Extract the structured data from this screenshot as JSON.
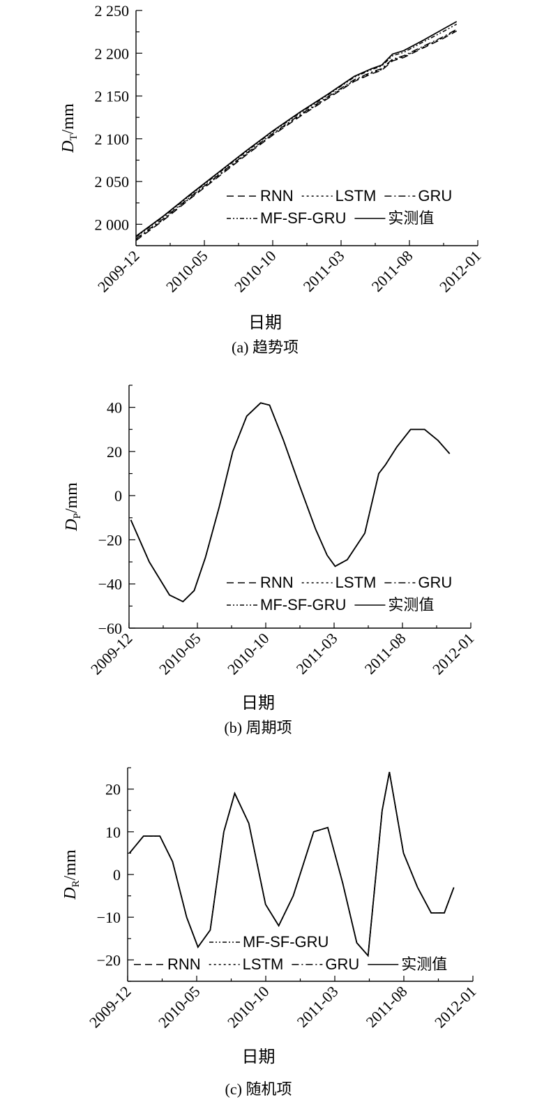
{
  "styles": {
    "RNN": "10,6",
    "LSTM": "3,4",
    "GRU": "10,4,2,4",
    "MF-SF-GRU": "6,3,2,3,2,3",
    "实测值": ""
  },
  "legend_order": [
    [
      "RNN",
      "LSTM",
      "GRU"
    ],
    [
      "MF-SF-GRU",
      "实测值"
    ]
  ],
  "legend_order_c": [
    [
      "MF-SF-GRU"
    ],
    [
      "RNN",
      "LSTM",
      "GRU",
      "实测值"
    ]
  ],
  "chart_data": [
    {
      "type": "line",
      "caption": "(a) 趋势项",
      "xlabel": "日期",
      "ylabel_main": "D",
      "ylabel_sub": "T",
      "ylabel_unit": "/mm",
      "x_ticks": [
        "2009-12",
        "2010-05",
        "2010-10",
        "2011-03",
        "2011-08",
        "2012-01"
      ],
      "y_ticks": [
        2000,
        2050,
        2100,
        2150,
        2200,
        2250
      ],
      "y_tick_labels": [
        "2 000",
        "2 050",
        "2 100",
        "2 150",
        "2 200",
        "2 250"
      ],
      "ylim": [
        1975,
        2250
      ],
      "x_range": [
        "2009-12-01",
        "2012-01-01"
      ],
      "series": [
        {
          "name": "实测值",
          "x": [
            "2009-12-01",
            "2010-02-01",
            "2010-04-01",
            "2010-06-01",
            "2010-08-01",
            "2010-10-01",
            "2010-12-01",
            "2011-02-01",
            "2011-04-01",
            "2011-05-10",
            "2011-06-01",
            "2011-06-25",
            "2011-07-20",
            "2011-09-01",
            "2011-10-15",
            "2011-11-15"
          ],
          "values": [
            1986,
            2010,
            2035,
            2060,
            2085,
            2109,
            2131,
            2152,
            2173,
            2182,
            2186,
            2199,
            2203,
            2215,
            2228,
            2237
          ]
        },
        {
          "name": "RNN",
          "x": [
            "2009-12-01",
            "2010-02-01",
            "2010-04-01",
            "2010-06-01",
            "2010-08-01",
            "2010-10-01",
            "2010-12-01",
            "2011-02-01",
            "2011-04-01",
            "2011-05-10",
            "2011-06-01",
            "2011-06-25",
            "2011-07-20",
            "2011-09-01",
            "2011-10-15",
            "2011-11-15"
          ],
          "values": [
            1981,
            2005,
            2030,
            2055,
            2080,
            2104,
            2126,
            2147,
            2167,
            2176,
            2180,
            2191,
            2195,
            2206,
            2217,
            2226
          ]
        },
        {
          "name": "LSTM",
          "x": [
            "2009-12-01",
            "2010-02-01",
            "2010-04-01",
            "2010-06-01",
            "2010-08-01",
            "2010-10-01",
            "2010-12-01",
            "2011-02-01",
            "2011-04-01",
            "2011-05-10",
            "2011-06-01",
            "2011-06-25",
            "2011-07-20",
            "2011-09-01",
            "2011-10-15",
            "2011-11-15"
          ],
          "values": [
            1982,
            2006,
            2031,
            2056,
            2081,
            2105,
            2127,
            2148,
            2168,
            2177,
            2181,
            2192,
            2196,
            2207,
            2218,
            2227
          ]
        },
        {
          "name": "GRU",
          "x": [
            "2009-12-01",
            "2010-02-01",
            "2010-04-01",
            "2010-06-01",
            "2010-08-01",
            "2010-10-01",
            "2010-12-01",
            "2011-02-01",
            "2011-04-01",
            "2011-05-10",
            "2011-06-01",
            "2011-06-25",
            "2011-07-20",
            "2011-09-01",
            "2011-10-15",
            "2011-11-15"
          ],
          "values": [
            1983,
            2007,
            2032,
            2057,
            2082,
            2106,
            2128,
            2149,
            2169,
            2178,
            2182,
            2193,
            2197,
            2208,
            2219,
            2228
          ]
        },
        {
          "name": "MF-SF-GRU",
          "x": [
            "2009-12-01",
            "2010-02-01",
            "2010-04-01",
            "2010-06-01",
            "2010-08-01",
            "2010-10-01",
            "2010-12-01",
            "2011-02-01",
            "2011-04-01",
            "2011-05-10",
            "2011-06-01",
            "2011-06-25",
            "2011-07-20",
            "2011-09-01",
            "2011-10-15",
            "2011-11-15"
          ],
          "values": [
            1985,
            2009,
            2034,
            2059,
            2084,
            2108,
            2130,
            2151,
            2172,
            2181,
            2185,
            2197,
            2201,
            2213,
            2225,
            2234
          ]
        }
      ]
    },
    {
      "type": "line",
      "caption": "(b) 周期项",
      "xlabel": "日期",
      "ylabel_main": "D",
      "ylabel_sub": "P",
      "ylabel_unit": "/mm",
      "x_ticks": [
        "2009-12",
        "2010-05",
        "2010-10",
        "2011-03",
        "2011-08",
        "2012-01"
      ],
      "y_ticks": [
        -60,
        -40,
        -20,
        0,
        20,
        40
      ],
      "y_tick_labels": [
        "−60",
        "−40",
        "−20",
        "0",
        "20",
        "40"
      ],
      "ylim": [
        -60,
        50
      ],
      "x_range": [
        "2009-12-01",
        "2012-01-01"
      ],
      "series": [
        {
          "name": "实测值",
          "x": [
            "2009-12-05",
            "2010-01-15",
            "2010-03-01",
            "2010-03-31",
            "2010-04-25",
            "2010-05-20",
            "2010-06-20",
            "2010-07-20",
            "2010-08-20",
            "2010-09-20",
            "2010-10-10",
            "2010-11-10",
            "2010-12-15",
            "2011-01-20",
            "2011-02-15",
            "2011-03-05",
            "2011-04-01",
            "2011-05-10",
            "2011-06-10",
            "2011-06-25",
            "2011-07-20",
            "2011-08-20",
            "2011-09-20",
            "2011-10-20",
            "2011-11-15"
          ],
          "values": [
            -11,
            -30,
            -45,
            -48,
            -43,
            -28,
            -5,
            20,
            36,
            42,
            41,
            25,
            5,
            -15,
            -27,
            -32,
            -29,
            -17,
            10,
            14,
            22,
            30,
            30,
            25,
            19
          ]
        },
        {
          "name": "RNN",
          "x": [
            "2009-12-05",
            "2010-01-15",
            "2010-03-01",
            "2010-03-31",
            "2010-04-25",
            "2010-05-20",
            "2010-06-20",
            "2010-07-20",
            "2010-08-20",
            "2010-09-20",
            "2010-10-10",
            "2010-11-10",
            "2010-12-15",
            "2011-01-20",
            "2011-02-15",
            "2011-03-05",
            "2011-04-01",
            "2011-05-10",
            "2011-06-10",
            "2011-06-25",
            "2011-07-20",
            "2011-08-20",
            "2011-09-20",
            "2011-10-20",
            "2011-11-15"
          ],
          "values": [
            -11,
            -30,
            -45,
            -48,
            -43,
            -28,
            -5,
            20,
            36,
            42,
            41,
            25,
            5,
            -15,
            -27,
            -32,
            -29,
            -17,
            10,
            14,
            22,
            30,
            30,
            25,
            19
          ]
        },
        {
          "name": "LSTM",
          "x": [
            "2009-12-05",
            "2010-01-15",
            "2010-03-01",
            "2010-03-31",
            "2010-04-25",
            "2010-05-20",
            "2010-06-20",
            "2010-07-20",
            "2010-08-20",
            "2010-09-20",
            "2010-10-10",
            "2010-11-10",
            "2010-12-15",
            "2011-01-20",
            "2011-02-15",
            "2011-03-05",
            "2011-04-01",
            "2011-05-10",
            "2011-06-10",
            "2011-06-25",
            "2011-07-20",
            "2011-08-20",
            "2011-09-20",
            "2011-10-20",
            "2011-11-15"
          ],
          "values": [
            -11,
            -30,
            -45,
            -48,
            -43,
            -28,
            -5,
            20,
            36,
            42,
            41,
            25,
            5,
            -15,
            -27,
            -32,
            -29,
            -17,
            10,
            14,
            22,
            30,
            30,
            25,
            19
          ]
        },
        {
          "name": "GRU",
          "x": [
            "2009-12-05",
            "2010-01-15",
            "2010-03-01",
            "2010-03-31",
            "2010-04-25",
            "2010-05-20",
            "2010-06-20",
            "2010-07-20",
            "2010-08-20",
            "2010-09-20",
            "2010-10-10",
            "2010-11-10",
            "2010-12-15",
            "2011-01-20",
            "2011-02-15",
            "2011-03-05",
            "2011-04-01",
            "2011-05-10",
            "2011-06-10",
            "2011-06-25",
            "2011-07-20",
            "2011-08-20",
            "2011-09-20",
            "2011-10-20",
            "2011-11-15"
          ],
          "values": [
            -11,
            -30,
            -45,
            -48,
            -43,
            -28,
            -5,
            20,
            36,
            42,
            41,
            25,
            5,
            -15,
            -27,
            -32,
            -29,
            -17,
            10,
            14,
            22,
            30,
            30,
            25,
            19
          ]
        },
        {
          "name": "MF-SF-GRU",
          "x": [
            "2009-12-05",
            "2010-01-15",
            "2010-03-01",
            "2010-03-31",
            "2010-04-25",
            "2010-05-20",
            "2010-06-20",
            "2010-07-20",
            "2010-08-20",
            "2010-09-20",
            "2010-10-10",
            "2010-11-10",
            "2010-12-15",
            "2011-01-20",
            "2011-02-15",
            "2011-03-05",
            "2011-04-01",
            "2011-05-10",
            "2011-06-10",
            "2011-06-25",
            "2011-07-20",
            "2011-08-20",
            "2011-09-20",
            "2011-10-20",
            "2011-11-15"
          ],
          "values": [
            -11,
            -30,
            -45,
            -48,
            -43,
            -28,
            -5,
            20,
            36,
            42,
            41,
            25,
            5,
            -15,
            -27,
            -32,
            -29,
            -17,
            10,
            14,
            22,
            30,
            30,
            25,
            19
          ]
        }
      ]
    },
    {
      "type": "line",
      "caption": "(c) 随机项",
      "xlabel": "日期",
      "ylabel_main": "D",
      "ylabel_sub": "R",
      "ylabel_unit": "/mm",
      "x_ticks": [
        "2009-12",
        "2010-05",
        "2010-10",
        "2011-03",
        "2011-08",
        "2012-01"
      ],
      "y_ticks": [
        -20,
        -10,
        0,
        10,
        20
      ],
      "y_tick_labels": [
        "−20",
        "−10",
        "0",
        "10",
        "20"
      ],
      "ylim": [
        -25,
        25
      ],
      "x_range": [
        "2009-12-01",
        "2012-01-01"
      ],
      "series": [
        {
          "name": "实测值",
          "x": [
            "2009-12-05",
            "2010-01-05",
            "2010-02-10",
            "2010-03-10",
            "2010-04-10",
            "2010-05-05",
            "2010-06-01",
            "2010-07-01",
            "2010-07-25",
            "2010-08-25",
            "2010-10-01",
            "2010-10-30",
            "2010-12-01",
            "2011-01-15",
            "2011-02-15",
            "2011-03-20",
            "2011-04-20",
            "2011-05-15",
            "2011-06-15",
            "2011-07-01",
            "2011-08-01",
            "2011-09-01",
            "2011-10-01",
            "2011-10-30",
            "2011-11-20"
          ],
          "values": [
            5,
            9,
            9,
            3,
            -10,
            -17,
            -13,
            10,
            19,
            12,
            -7,
            -12,
            -5,
            10,
            11,
            -2,
            -16,
            -19,
            15,
            24,
            5,
            -3,
            -9,
            -9,
            -3
          ]
        },
        {
          "name": "RNN",
          "x": [
            "2009-12-05",
            "2010-01-05",
            "2010-02-10",
            "2010-03-10",
            "2010-04-10",
            "2010-05-05",
            "2010-06-01",
            "2010-07-01",
            "2010-07-25",
            "2010-08-25",
            "2010-10-01",
            "2010-10-30",
            "2010-12-01",
            "2011-01-15",
            "2011-02-15",
            "2011-03-20",
            "2011-04-20",
            "2011-05-15",
            "2011-06-15",
            "2011-07-01",
            "2011-08-01",
            "2011-09-01",
            "2011-10-01",
            "2011-10-30",
            "2011-11-20"
          ],
          "values": [
            5,
            9,
            9,
            3,
            -10,
            -17,
            -13,
            10,
            19,
            12,
            -7,
            -12,
            -5,
            10,
            11,
            -2,
            -16,
            -19,
            15,
            24,
            5,
            -3,
            -9,
            -9,
            -3
          ]
        },
        {
          "name": "LSTM",
          "x": [
            "2009-12-05",
            "2010-01-05",
            "2010-02-10",
            "2010-03-10",
            "2010-04-10",
            "2010-05-05",
            "2010-06-01",
            "2010-07-01",
            "2010-07-25",
            "2010-08-25",
            "2010-10-01",
            "2010-10-30",
            "2010-12-01",
            "2011-01-15",
            "2011-02-15",
            "2011-03-20",
            "2011-04-20",
            "2011-05-15",
            "2011-06-15",
            "2011-07-01",
            "2011-08-01",
            "2011-09-01",
            "2011-10-01",
            "2011-10-30",
            "2011-11-20"
          ],
          "values": [
            5,
            9,
            9,
            3,
            -10,
            -17,
            -13,
            10,
            19,
            12,
            -7,
            -12,
            -5,
            10,
            11,
            -2,
            -16,
            -19,
            15,
            24,
            5,
            -3,
            -9,
            -9,
            -3
          ]
        },
        {
          "name": "GRU",
          "x": [
            "2009-12-05",
            "2010-01-05",
            "2010-02-10",
            "2010-03-10",
            "2010-04-10",
            "2010-05-05",
            "2010-06-01",
            "2010-07-01",
            "2010-07-25",
            "2010-08-25",
            "2010-10-01",
            "2010-10-30",
            "2010-12-01",
            "2011-01-15",
            "2011-02-15",
            "2011-03-20",
            "2011-04-20",
            "2011-05-15",
            "2011-06-15",
            "2011-07-01",
            "2011-08-01",
            "2011-09-01",
            "2011-10-01",
            "2011-10-30",
            "2011-11-20"
          ],
          "values": [
            5,
            9,
            9,
            3,
            -10,
            -17,
            -13,
            10,
            19,
            12,
            -7,
            -12,
            -5,
            10,
            11,
            -2,
            -16,
            -19,
            15,
            24,
            5,
            -3,
            -9,
            -9,
            -3
          ]
        },
        {
          "name": "MF-SF-GRU",
          "x": [
            "2009-12-05",
            "2010-01-05",
            "2010-02-10",
            "2010-03-10",
            "2010-04-10",
            "2010-05-05",
            "2010-06-01",
            "2010-07-01",
            "2010-07-25",
            "2010-08-25",
            "2010-10-01",
            "2010-10-30",
            "2010-12-01",
            "2011-01-15",
            "2011-02-15",
            "2011-03-20",
            "2011-04-20",
            "2011-05-15",
            "2011-06-15",
            "2011-07-01",
            "2011-08-01",
            "2011-09-01",
            "2011-10-01",
            "2011-10-30",
            "2011-11-20"
          ],
          "values": [
            5,
            9,
            9,
            3,
            -10,
            -17,
            -13,
            10,
            19,
            12,
            -7,
            -12,
            -5,
            10,
            11,
            -2,
            -16,
            -19,
            15,
            24,
            5,
            -3,
            -9,
            -9,
            -3
          ]
        }
      ]
    }
  ]
}
